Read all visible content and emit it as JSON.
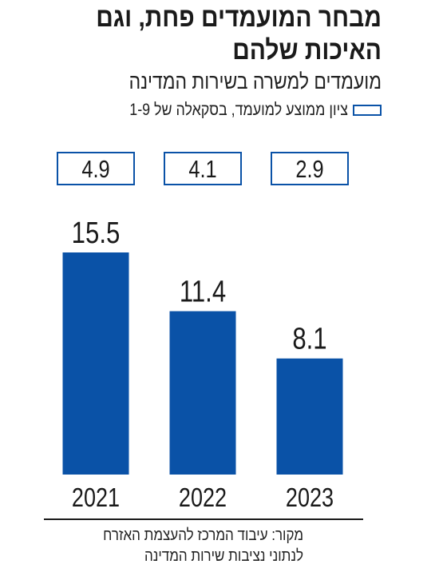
{
  "chart_data": {
    "type": "bar",
    "title": "מבחר המועמדים פחת, וגם האיכות שלהם",
    "subtitle": "מועמדים למשרה בשירות המדינה",
    "categories": [
      "2021",
      "2022",
      "2023"
    ],
    "series": [
      {
        "values": [
          15.5,
          11.4,
          8.1
        ]
      }
    ],
    "average_scores": [
      4.9,
      4.1,
      2.9
    ],
    "legend": "ציון ממוצע למועמד, בסקאלה של 1-9",
    "ylim": [
      0,
      15.5
    ],
    "grid": false,
    "bar_color": "#0a52a7",
    "source_lines": [
      "מקור: עיבוד המרכז להעצמת האזרח",
      "לנתוני נציבות שירות המדינה"
    ]
  }
}
